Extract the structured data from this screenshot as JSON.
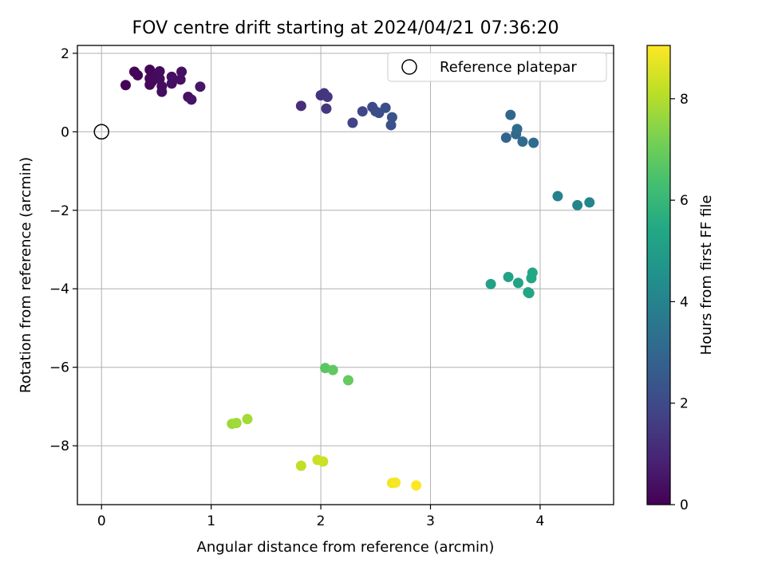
{
  "chart_data": {
    "type": "scatter",
    "title": "FOV centre drift starting at 2024/04/21 07:36:20",
    "xlabel": "Angular distance from reference (arcmin)",
    "ylabel": "Rotation from reference (arcmin)",
    "xlim": [
      -0.22,
      4.67
    ],
    "ylim": [
      -9.5,
      2.2
    ],
    "xticks": [
      0,
      1,
      2,
      3,
      4
    ],
    "yticks": [
      2,
      0,
      -2,
      -4,
      -6,
      -8
    ],
    "grid": true,
    "legend": {
      "position": "top-right",
      "entries": [
        "Reference platepar"
      ]
    },
    "reference_point": {
      "x": 0,
      "y": 0,
      "label": "Reference platepar"
    },
    "colorbar": {
      "label": "Hours from first FF file",
      "min": 0,
      "max": 9.05,
      "ticks": [
        0,
        2,
        4,
        6,
        8
      ],
      "colormap": "viridis"
    },
    "points": [
      {
        "x": 0.22,
        "y": 1.19,
        "c": 0.05
      },
      {
        "x": 0.3,
        "y": 1.53,
        "c": 0.08
      },
      {
        "x": 0.33,
        "y": 1.44,
        "c": 0.1
      },
      {
        "x": 0.44,
        "y": 1.58,
        "c": 0.12
      },
      {
        "x": 0.44,
        "y": 1.36,
        "c": 0.15
      },
      {
        "x": 0.44,
        "y": 1.2,
        "c": 0.18
      },
      {
        "x": 0.46,
        "y": 1.28,
        "c": 0.2
      },
      {
        "x": 0.5,
        "y": 1.45,
        "c": 0.22
      },
      {
        "x": 0.53,
        "y": 1.54,
        "c": 0.25
      },
      {
        "x": 0.53,
        "y": 1.35,
        "c": 0.28
      },
      {
        "x": 0.55,
        "y": 1.16,
        "c": 0.3
      },
      {
        "x": 0.55,
        "y": 1.02,
        "c": 0.32
      },
      {
        "x": 0.64,
        "y": 1.4,
        "c": 0.35
      },
      {
        "x": 0.64,
        "y": 1.23,
        "c": 0.38
      },
      {
        "x": 0.72,
        "y": 1.33,
        "c": 0.4
      },
      {
        "x": 0.73,
        "y": 1.53,
        "c": 0.42
      },
      {
        "x": 0.79,
        "y": 0.89,
        "c": 0.45
      },
      {
        "x": 0.82,
        "y": 0.82,
        "c": 0.5
      },
      {
        "x": 0.9,
        "y": 1.15,
        "c": 0.55
      },
      {
        "x": 1.82,
        "y": 0.66,
        "c": 1.2
      },
      {
        "x": 2.0,
        "y": 0.93,
        "c": 1.3
      },
      {
        "x": 2.03,
        "y": 0.98,
        "c": 1.35
      },
      {
        "x": 2.05,
        "y": 0.59,
        "c": 1.4
      },
      {
        "x": 2.06,
        "y": 0.89,
        "c": 1.45
      },
      {
        "x": 2.29,
        "y": 0.23,
        "c": 1.8
      },
      {
        "x": 2.38,
        "y": 0.52,
        "c": 1.9
      },
      {
        "x": 2.47,
        "y": 0.63,
        "c": 2.0
      },
      {
        "x": 2.5,
        "y": 0.52,
        "c": 2.05
      },
      {
        "x": 2.53,
        "y": 0.48,
        "c": 2.1
      },
      {
        "x": 2.59,
        "y": 0.61,
        "c": 2.15
      },
      {
        "x": 2.64,
        "y": 0.17,
        "c": 2.25
      },
      {
        "x": 2.65,
        "y": 0.37,
        "c": 2.3
      },
      {
        "x": 3.69,
        "y": -0.15,
        "c": 2.9
      },
      {
        "x": 3.73,
        "y": 0.43,
        "c": 3.0
      },
      {
        "x": 3.78,
        "y": -0.06,
        "c": 3.05
      },
      {
        "x": 3.79,
        "y": 0.07,
        "c": 3.1
      },
      {
        "x": 3.84,
        "y": -0.25,
        "c": 3.15
      },
      {
        "x": 3.94,
        "y": -0.28,
        "c": 3.2
      },
      {
        "x": 4.16,
        "y": -1.64,
        "c": 3.9
      },
      {
        "x": 4.34,
        "y": -1.87,
        "c": 4.05
      },
      {
        "x": 4.45,
        "y": -1.8,
        "c": 4.1
      },
      {
        "x": 3.55,
        "y": -3.88,
        "c": 5.15
      },
      {
        "x": 3.71,
        "y": -3.7,
        "c": 5.2
      },
      {
        "x": 3.8,
        "y": -3.85,
        "c": 5.25
      },
      {
        "x": 3.89,
        "y": -4.09,
        "c": 5.3
      },
      {
        "x": 3.9,
        "y": -4.11,
        "c": 5.3
      },
      {
        "x": 3.92,
        "y": -3.73,
        "c": 5.35
      },
      {
        "x": 3.93,
        "y": -3.59,
        "c": 5.4
      },
      {
        "x": 2.04,
        "y": -6.02,
        "c": 6.7
      },
      {
        "x": 2.11,
        "y": -6.07,
        "c": 6.8
      },
      {
        "x": 2.25,
        "y": -6.33,
        "c": 6.9
      },
      {
        "x": 1.19,
        "y": -7.44,
        "c": 7.7
      },
      {
        "x": 1.23,
        "y": -7.42,
        "c": 7.75
      },
      {
        "x": 1.33,
        "y": -7.32,
        "c": 7.8
      },
      {
        "x": 1.82,
        "y": -8.51,
        "c": 8.2
      },
      {
        "x": 1.97,
        "y": -8.36,
        "c": 8.3
      },
      {
        "x": 2.02,
        "y": -8.4,
        "c": 8.35
      },
      {
        "x": 2.65,
        "y": -8.95,
        "c": 8.9
      },
      {
        "x": 2.68,
        "y": -8.94,
        "c": 8.95
      },
      {
        "x": 2.87,
        "y": -9.01,
        "c": 9.05
      }
    ]
  }
}
